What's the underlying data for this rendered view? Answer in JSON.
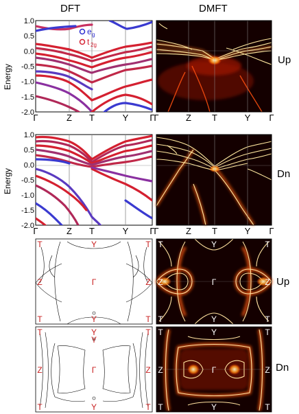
{
  "headers": {
    "dft": "DFT",
    "dmft": "DMFT"
  },
  "side_labels": {
    "up": "Up",
    "dn": "Dn"
  },
  "band": {
    "ylabel": "Energy",
    "yticks": [
      "1.0",
      "0.5",
      "0.0",
      "-0.5",
      "-1.0",
      "-1.5",
      "-2.0"
    ],
    "xticks": [
      "Γ",
      "Z",
      "T",
      "Y",
      "Γ"
    ],
    "legend": {
      "eg_main": "e",
      "eg_sub": "g",
      "t2g_main": "t",
      "t2g_sub": "2g"
    }
  },
  "fermi": {
    "corners": [
      "T",
      "Y",
      "T",
      "Z",
      "Γ",
      "Z",
      "T",
      "Y",
      "T"
    ],
    "dn_extra_y": "Y"
  },
  "colors": {
    "eg": "#2a2ad0",
    "t2g": "#d42030",
    "dmft_bg": "#140000",
    "dmft_line": "#ffd86a",
    "label_red": "#c81e1e"
  }
}
